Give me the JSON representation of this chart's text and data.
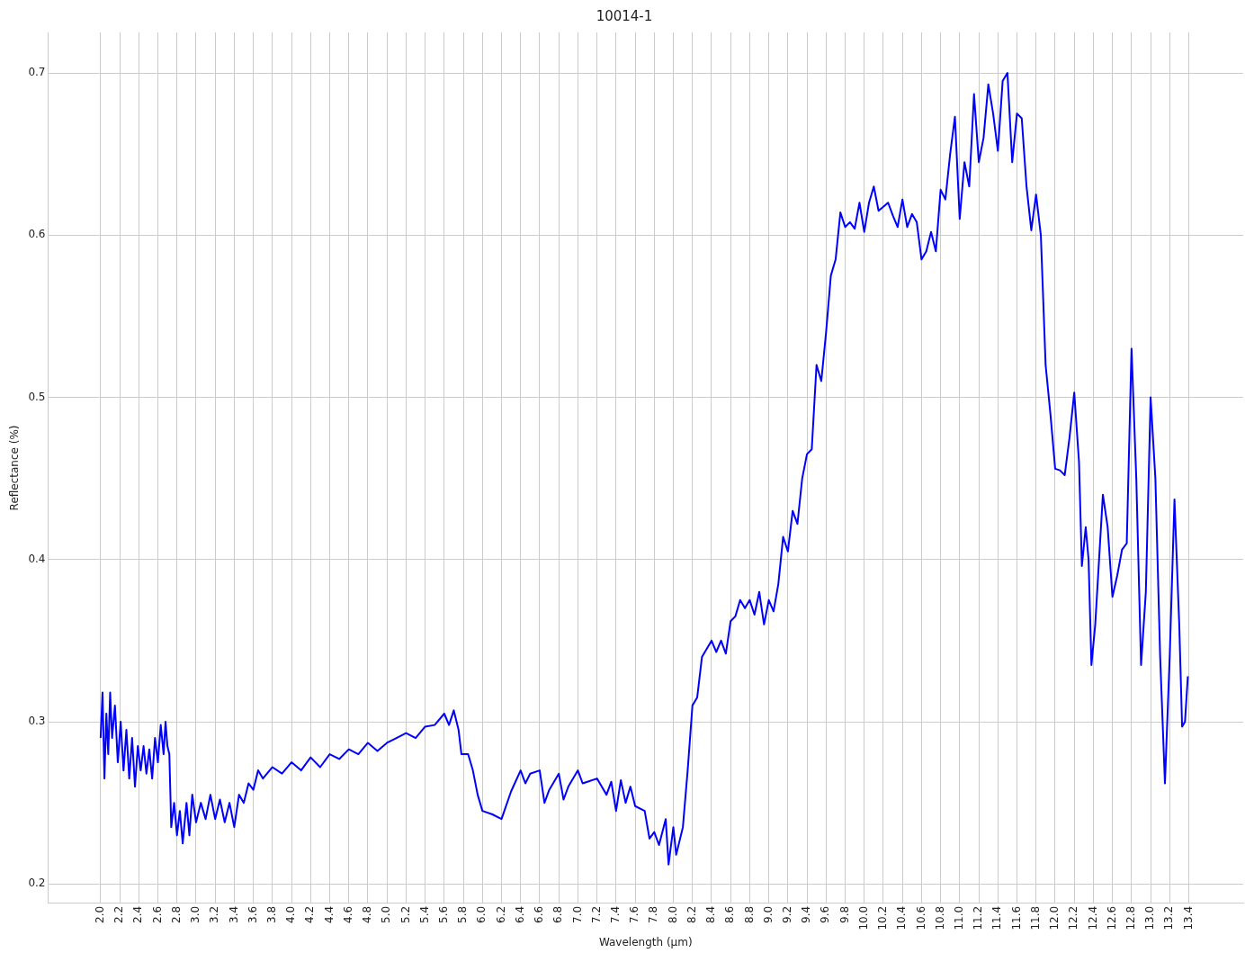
{
  "chart_data": {
    "type": "line",
    "title": "10014-1",
    "xlabel": "Wavelength (µm)",
    "ylabel": "Reflectance (%)",
    "xlim": [
      1.45,
      13.97
    ],
    "ylim": [
      0.188,
      0.725
    ],
    "xticks": [
      {
        "value": 2,
        "label": "2.0"
      },
      2.2,
      2.4,
      2.6,
      2.8,
      {
        "value": 3,
        "label": "3.0"
      },
      3.2,
      3.4,
      3.6,
      3.8,
      {
        "value": 4,
        "label": "4.0"
      },
      4.2,
      4.4,
      4.6,
      4.8,
      {
        "value": 5,
        "label": "5.0"
      },
      5.2,
      5.4,
      5.6,
      5.8,
      {
        "value": 6,
        "label": "6.0"
      },
      6.2,
      6.4,
      6.6,
      6.8,
      {
        "value": 7,
        "label": "7.0"
      },
      7.2,
      7.4,
      7.6,
      7.8,
      {
        "value": 8,
        "label": "8.0"
      },
      8.2,
      8.4,
      8.6,
      8.8,
      {
        "value": 9,
        "label": "9.0"
      },
      9.2,
      9.4,
      9.6,
      9.8,
      {
        "value": 10,
        "label": "10.0"
      },
      10.2,
      10.4,
      10.6,
      10.8,
      {
        "value": 11,
        "label": "11.0"
      },
      11.2,
      11.4,
      11.6,
      11.8,
      {
        "value": 12,
        "label": "12.0"
      },
      12.2,
      12.4,
      12.6,
      12.8,
      {
        "value": 13,
        "label": "13.0"
      },
      13.2,
      13.4
    ],
    "yticks": [
      0.2,
      0.3,
      0.4,
      0.5,
      0.6,
      0.7
    ],
    "grid": true,
    "legend": false,
    "marker": "none",
    "line_style": "solid",
    "series": [
      {
        "color": "#0000ff",
        "x": [
          2.0,
          2.02,
          2.04,
          2.06,
          2.08,
          2.1,
          2.12,
          2.15,
          2.18,
          2.21,
          2.24,
          2.27,
          2.3,
          2.33,
          2.36,
          2.39,
          2.42,
          2.45,
          2.48,
          2.51,
          2.54,
          2.57,
          2.6,
          2.63,
          2.66,
          2.68,
          2.7,
          2.72,
          2.74,
          2.77,
          2.8,
          2.83,
          2.86,
          2.9,
          2.93,
          2.96,
          3.0,
          3.05,
          3.1,
          3.15,
          3.2,
          3.25,
          3.3,
          3.35,
          3.4,
          3.45,
          3.5,
          3.55,
          3.6,
          3.65,
          3.7,
          3.8,
          3.9,
          4.0,
          4.1,
          4.2,
          4.3,
          4.4,
          4.5,
          4.6,
          4.7,
          4.8,
          4.9,
          5.0,
          5.1,
          5.2,
          5.3,
          5.4,
          5.5,
          5.6,
          5.65,
          5.7,
          5.75,
          5.78,
          5.85,
          5.9,
          5.95,
          6.0,
          6.1,
          6.2,
          6.3,
          6.4,
          6.45,
          6.5,
          6.6,
          6.65,
          6.7,
          6.8,
          6.85,
          6.9,
          7.0,
          7.05,
          7.1,
          7.2,
          7.3,
          7.35,
          7.4,
          7.45,
          7.5,
          7.55,
          7.6,
          7.7,
          7.75,
          7.8,
          7.85,
          7.92,
          7.95,
          8.0,
          8.03,
          8.1,
          8.15,
          8.2,
          8.25,
          8.3,
          8.35,
          8.4,
          8.45,
          8.5,
          8.55,
          8.6,
          8.65,
          8.7,
          8.75,
          8.8,
          8.85,
          8.9,
          8.95,
          9.0,
          9.05,
          9.1,
          9.15,
          9.2,
          9.25,
          9.3,
          9.35,
          9.4,
          9.45,
          9.5,
          9.55,
          9.6,
          9.65,
          9.7,
          9.75,
          9.8,
          9.85,
          9.9,
          9.95,
          10.0,
          10.05,
          10.1,
          10.15,
          10.25,
          10.3,
          10.35,
          10.4,
          10.45,
          10.5,
          10.55,
          10.6,
          10.65,
          10.7,
          10.75,
          10.8,
          10.85,
          10.9,
          10.95,
          11.0,
          11.05,
          11.1,
          11.15,
          11.2,
          11.25,
          11.3,
          11.35,
          11.4,
          11.45,
          11.5,
          11.55,
          11.6,
          11.65,
          11.7,
          11.75,
          11.8,
          11.85,
          11.9,
          11.95,
          12.0,
          12.05,
          12.1,
          12.15,
          12.2,
          12.25,
          12.28,
          12.32,
          12.35,
          12.38,
          12.42,
          12.5,
          12.55,
          12.6,
          12.65,
          12.7,
          12.75,
          12.8,
          12.85,
          12.9,
          12.95,
          13.0,
          13.05,
          13.1,
          13.15,
          13.2,
          13.25,
          13.3,
          13.33,
          13.36,
          13.39
        ],
        "values": [
          0.29,
          0.318,
          0.265,
          0.305,
          0.28,
          0.318,
          0.29,
          0.31,
          0.275,
          0.3,
          0.27,
          0.295,
          0.265,
          0.29,
          0.26,
          0.285,
          0.27,
          0.285,
          0.268,
          0.283,
          0.265,
          0.29,
          0.275,
          0.298,
          0.28,
          0.3,
          0.285,
          0.28,
          0.235,
          0.25,
          0.23,
          0.245,
          0.225,
          0.25,
          0.23,
          0.255,
          0.238,
          0.25,
          0.24,
          0.255,
          0.24,
          0.252,
          0.238,
          0.25,
          0.235,
          0.255,
          0.25,
          0.262,
          0.258,
          0.27,
          0.265,
          0.272,
          0.268,
          0.275,
          0.27,
          0.278,
          0.272,
          0.28,
          0.277,
          0.283,
          0.28,
          0.287,
          0.282,
          0.287,
          0.29,
          0.293,
          0.29,
          0.297,
          0.298,
          0.305,
          0.298,
          0.307,
          0.295,
          0.28,
          0.28,
          0.27,
          0.255,
          0.245,
          0.243,
          0.24,
          0.257,
          0.27,
          0.262,
          0.268,
          0.27,
          0.25,
          0.258,
          0.268,
          0.252,
          0.26,
          0.27,
          0.262,
          0.263,
          0.265,
          0.255,
          0.263,
          0.245,
          0.264,
          0.25,
          0.26,
          0.248,
          0.245,
          0.228,
          0.232,
          0.224,
          0.24,
          0.212,
          0.235,
          0.218,
          0.235,
          0.27,
          0.31,
          0.315,
          0.34,
          0.345,
          0.35,
          0.343,
          0.35,
          0.342,
          0.362,
          0.365,
          0.375,
          0.37,
          0.375,
          0.366,
          0.38,
          0.36,
          0.375,
          0.368,
          0.385,
          0.414,
          0.405,
          0.43,
          0.422,
          0.45,
          0.465,
          0.468,
          0.52,
          0.51,
          0.54,
          0.575,
          0.585,
          0.614,
          0.605,
          0.608,
          0.604,
          0.62,
          0.602,
          0.62,
          0.63,
          0.615,
          0.62,
          0.612,
          0.605,
          0.622,
          0.605,
          0.613,
          0.608,
          0.585,
          0.59,
          0.602,
          0.59,
          0.628,
          0.622,
          0.65,
          0.673,
          0.61,
          0.645,
          0.63,
          0.687,
          0.645,
          0.66,
          0.693,
          0.675,
          0.652,
          0.695,
          0.7,
          0.645,
          0.675,
          0.672,
          0.63,
          0.603,
          0.625,
          0.6,
          0.52,
          0.49,
          0.456,
          0.455,
          0.452,
          0.475,
          0.503,
          0.46,
          0.396,
          0.42,
          0.4,
          0.335,
          0.36,
          0.44,
          0.42,
          0.377,
          0.39,
          0.406,
          0.41,
          0.53,
          0.45,
          0.335,
          0.38,
          0.5,
          0.45,
          0.34,
          0.262,
          0.34,
          0.437,
          0.36,
          0.297,
          0.3,
          0.328
        ]
      }
    ]
  }
}
